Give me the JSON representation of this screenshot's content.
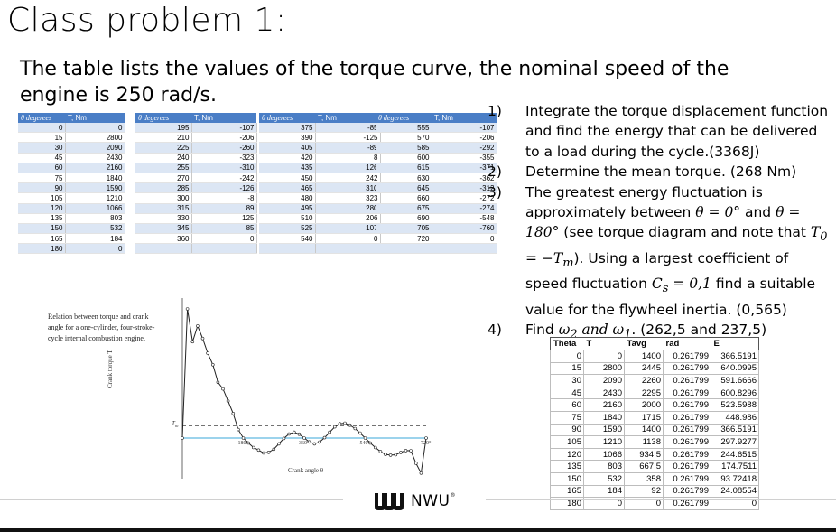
{
  "title": "Class problem 1:",
  "subtitle": "The table lists the values of the torque curve, the nominal speed of the engine is 250 rad/s.",
  "torque_table": {
    "header_theta": "θ degerees",
    "header_t": "T, Nm",
    "blocks": [
      {
        "theta": [
          "0",
          "15",
          "30",
          "45",
          "60",
          "75",
          "90",
          "105",
          "120",
          "135",
          "150",
          "165",
          "180"
        ],
        "t": [
          "0",
          "2800",
          "2090",
          "2430",
          "2160",
          "1840",
          "1590",
          "1210",
          "1066",
          "803",
          "532",
          "184",
          "0"
        ]
      },
      {
        "theta": [
          "195",
          "210",
          "225",
          "240",
          "255",
          "270",
          "285",
          "300",
          "315",
          "330",
          "345",
          "360"
        ],
        "t": [
          "-107",
          "-206",
          "-260",
          "-323",
          "-310",
          "-242",
          "-126",
          "-8",
          "89",
          "125",
          "85",
          "0"
        ]
      },
      {
        "theta": [
          "375",
          "390",
          "405",
          "420",
          "435",
          "450",
          "465",
          "480",
          "495",
          "510",
          "525",
          "540"
        ],
        "t": [
          "-85",
          "-125",
          "-89",
          "8",
          "126",
          "242",
          "310",
          "323",
          "280",
          "206",
          "107",
          "0"
        ]
      },
      {
        "theta": [
          "555",
          "570",
          "585",
          "600",
          "615",
          "630",
          "645",
          "660",
          "675",
          "690",
          "705",
          "720"
        ],
        "t": [
          "-107",
          "-206",
          "-292",
          "-355",
          "-371",
          "-362",
          "-312",
          "-272",
          "-274",
          "-548",
          "-760",
          "0"
        ]
      }
    ]
  },
  "questions": {
    "q1_num": "1)",
    "q1_text": "Integrate the torque displacement function and find the energy that can be delivered to a load during the cycle.(3368J)",
    "q2_num": "2)",
    "q2_text": "Determine the mean torque. (268 Nm)",
    "q3_num": "3)",
    "q3_a": "The greatest energy fluctuation is approximately between ",
    "q3_m1": "θ = 0°",
    "q3_b": " and ",
    "q3_m2": "θ = 180°",
    "q3_c": " (see torque diagram and note that ",
    "q3_m3": "T",
    "q3_m3_sub": "0",
    "q3_m3b": " = −T",
    "q3_m3b_sub": "m",
    "q3_d": "). Using a largest coefficient of speed fluctuation ",
    "q3_m4": "C",
    "q3_m4_sub": "s",
    "q3_m4b": " = 0,1",
    "q3_e": " find a suitable value for the flywheel inertia. (0,565)",
    "q4_num": "4)",
    "q4_a": "Find ",
    "q4_m1": "ω",
    "q4_m1_sub": "2",
    "q4_m_and": " and ω",
    "q4_m2_sub": "1",
    "q4_b": ". (262,5 and 237,5)"
  },
  "graph": {
    "caption": "Relation between torque and crank angle for a one-cylinder, four-stroke-cycle internal combustion engine.",
    "y_label": "Crank torque T",
    "x_label": "Crank angle θ",
    "tm_label": "T",
    "tm_sub": "m",
    "tick_180": "180°",
    "tick_360": "360°",
    "tick_540": "540°",
    "tick_720": "720°",
    "points": [
      [
        0,
        0
      ],
      [
        15,
        2800
      ],
      [
        30,
        2090
      ],
      [
        45,
        2430
      ],
      [
        60,
        2160
      ],
      [
        75,
        1840
      ],
      [
        90,
        1590
      ],
      [
        105,
        1210
      ],
      [
        120,
        1066
      ],
      [
        135,
        803
      ],
      [
        150,
        532
      ],
      [
        165,
        184
      ],
      [
        180,
        0
      ],
      [
        195,
        -107
      ],
      [
        210,
        -206
      ],
      [
        225,
        -260
      ],
      [
        240,
        -323
      ],
      [
        255,
        -310
      ],
      [
        270,
        -242
      ],
      [
        285,
        -126
      ],
      [
        300,
        -8
      ],
      [
        315,
        89
      ],
      [
        330,
        125
      ],
      [
        345,
        85
      ],
      [
        360,
        0
      ],
      [
        375,
        -85
      ],
      [
        390,
        -125
      ],
      [
        405,
        -89
      ],
      [
        420,
        8
      ],
      [
        435,
        126
      ],
      [
        450,
        242
      ],
      [
        465,
        310
      ],
      [
        480,
        323
      ],
      [
        495,
        280
      ],
      [
        510,
        206
      ],
      [
        525,
        107
      ],
      [
        540,
        0
      ],
      [
        555,
        -107
      ],
      [
        570,
        -206
      ],
      [
        585,
        -292
      ],
      [
        600,
        -355
      ],
      [
        615,
        -371
      ],
      [
        630,
        -362
      ],
      [
        645,
        -312
      ],
      [
        660,
        -272
      ],
      [
        675,
        -274
      ],
      [
        690,
        -548
      ],
      [
        705,
        -760
      ],
      [
        720,
        0
      ]
    ],
    "mean": 268
  },
  "energy_table": {
    "headers": [
      "Theta",
      "T",
      "Tavg",
      "rad",
      "E"
    ],
    "rows": [
      [
        "0",
        "0",
        "1400",
        "0.261799",
        "366.5191"
      ],
      [
        "15",
        "2800",
        "2445",
        "0.261799",
        "640.0995"
      ],
      [
        "30",
        "2090",
        "2260",
        "0.261799",
        "591.6666"
      ],
      [
        "45",
        "2430",
        "2295",
        "0.261799",
        "600.8296"
      ],
      [
        "60",
        "2160",
        "2000",
        "0.261799",
        "523.5988"
      ],
      [
        "75",
        "1840",
        "1715",
        "0.261799",
        "448.986"
      ],
      [
        "90",
        "1590",
        "1400",
        "0.261799",
        "366.5191"
      ],
      [
        "105",
        "1210",
        "1138",
        "0.261799",
        "297.9277"
      ],
      [
        "120",
        "1066",
        "934.5",
        "0.261799",
        "244.6515"
      ],
      [
        "135",
        "803",
        "667.5",
        "0.261799",
        "174.7511"
      ],
      [
        "150",
        "532",
        "358",
        "0.261799",
        "93.72418"
      ],
      [
        "165",
        "184",
        "92",
        "0.261799",
        "24.08554"
      ],
      [
        "180",
        "0",
        "0",
        "0.261799",
        "0"
      ]
    ]
  },
  "footer": {
    "logo_text": "NWU",
    "logo_reg": "®"
  }
}
